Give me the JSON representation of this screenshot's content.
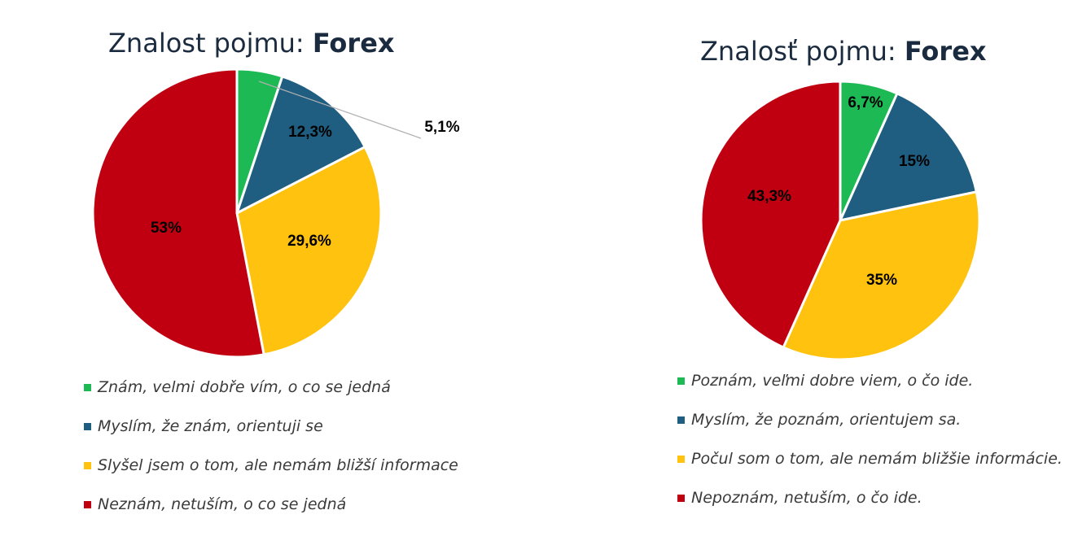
{
  "chart_data": [
    {
      "type": "pie",
      "title_prefix": "Znalost pojmu: ",
      "title_bold": "Forex",
      "categories": [
        "Znám, velmi dobře vím, o co se jedná",
        "Myslím, že znám, orientuji se",
        "Slyšel jsem o tom, ale nemám bližší informace",
        "Neznám, netuším, o co se jedná"
      ],
      "values": [
        5.1,
        12.3,
        29.6,
        53
      ],
      "labels": [
        "5,1%",
        "12,3%",
        "29,6%",
        "53%"
      ],
      "colors": [
        "#1db954",
        "#1f5e80",
        "#ffc20e",
        "#c00010"
      ],
      "legend_position": "bottom"
    },
    {
      "type": "pie",
      "title_prefix": "Znalosť pojmu: ",
      "title_bold": "Forex",
      "categories": [
        "Poznám, veľmi dobre viem, o čo ide.",
        "Myslím, že poznám, orientujem sa.",
        "Počul som o tom, ale nemám bližšie informácie.",
        "Nepoznám, netuším, o čo ide."
      ],
      "values": [
        6.7,
        15,
        35,
        43.3
      ],
      "labels": [
        "6,7%",
        "15%",
        "35%",
        "43,3%"
      ],
      "colors": [
        "#1db954",
        "#1f5e80",
        "#ffc20e",
        "#c00010"
      ],
      "legend_position": "bottom"
    }
  ]
}
